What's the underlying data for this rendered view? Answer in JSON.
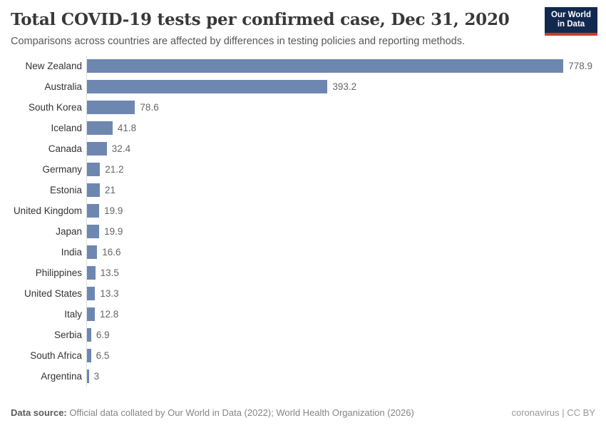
{
  "header": {
    "title": "Total COVID-19 tests per confirmed case, Dec 31, 2020",
    "subtitle": "Comparisons across countries are affected by differences in testing policies and reporting methods.",
    "logo": {
      "line1": "Our World",
      "line2": "in Data"
    }
  },
  "chart_data": {
    "type": "bar",
    "orientation": "horizontal",
    "title": "Total COVID-19 tests per confirmed case, Dec 31, 2020",
    "xlabel": "",
    "ylabel": "",
    "categories": [
      "New Zealand",
      "Australia",
      "South Korea",
      "Iceland",
      "Canada",
      "Germany",
      "Estonia",
      "United Kingdom",
      "Japan",
      "India",
      "Philippines",
      "United States",
      "Italy",
      "Serbia",
      "South Africa",
      "Argentina"
    ],
    "values": [
      778.9,
      393.2,
      78.6,
      41.8,
      32.4,
      21.2,
      21,
      19.9,
      19.9,
      16.6,
      13.5,
      13.3,
      12.8,
      6.9,
      6.5,
      3
    ],
    "value_labels": [
      "778.9",
      "393.2",
      "78.6",
      "41.8",
      "32.4",
      "21.2",
      "21",
      "19.9",
      "19.9",
      "16.6",
      "13.5",
      "13.3",
      "12.8",
      "6.9",
      "6.5",
      "3"
    ],
    "xlim": [
      0,
      778.9
    ],
    "grid": false,
    "legend": "none",
    "bar_color": "#6d87b1",
    "axis_line_color": "#dddddd"
  },
  "footer": {
    "source_label": "Data source:",
    "source_text": " Official data collated by Our World in Data (2022); World Health Organization (2026)",
    "right_text": "coronavirus | CC BY"
  },
  "colors": {
    "title": "#383838",
    "subtitle": "#575757",
    "bar": "#6d87b1",
    "value_label": "#666666",
    "logo_bg": "#12294f",
    "logo_accent": "#d1382e"
  }
}
